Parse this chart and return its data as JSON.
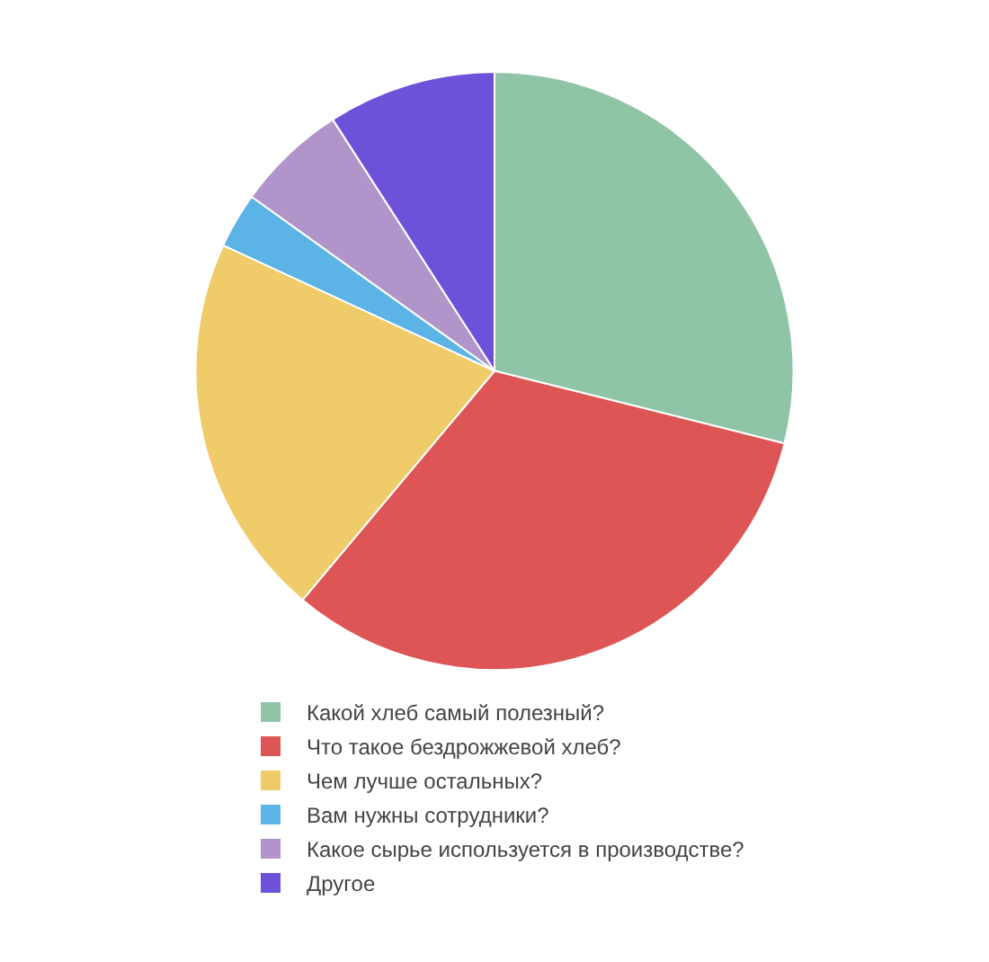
{
  "chart_data": {
    "type": "pie",
    "categories": [
      "Какой хлеб самый полезный?",
      "Что такое бездрожжевой хлеб?",
      "Чем лучше остальных?",
      "Вам нужны сотрудники?",
      "Какое сырье используется в производстве?",
      "Другое"
    ],
    "values": [
      28.9,
      32.2,
      20.8,
      3,
      6,
      9.1
    ],
    "colors": [
      "#8fc4a7",
      "#dd5555",
      "#f0cb6a",
      "#5bb4e5",
      "#b094ca",
      "#6d52d9"
    ],
    "legend": "bottom"
  }
}
